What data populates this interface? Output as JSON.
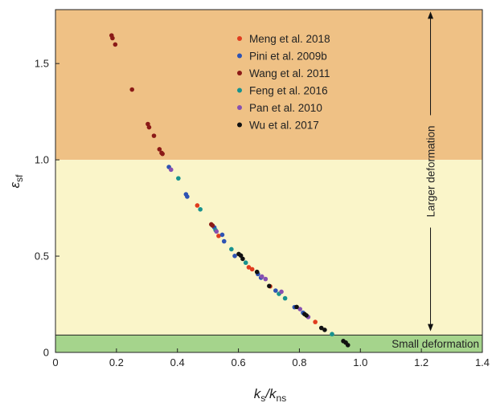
{
  "chart_data": {
    "type": "scatter",
    "title": "",
    "xlabel": {
      "main": "k",
      "sub1": "s",
      "sep": "/k",
      "sub2": "ns"
    },
    "ylabel": {
      "main": "ε",
      "sub": "sf"
    },
    "xlim": [
      0,
      1.4
    ],
    "ylim": [
      0,
      1.78
    ],
    "xticks": [
      "0",
      "0.2",
      "0.4",
      "0.6",
      "0.8",
      "1.0",
      "1.2",
      "1.4"
    ],
    "yticks": [
      "0",
      "0.5",
      "1.0",
      "1.5"
    ],
    "grid": false,
    "legend_position": "top-center",
    "regions": [
      {
        "label": "",
        "y_from": 1.0,
        "y_to": 1.78,
        "color": "#efc185"
      },
      {
        "label": "",
        "y_from": 0.09,
        "y_to": 1.0,
        "color": "#faf5c9"
      },
      {
        "label": "Small deformation",
        "y_from": 0.0,
        "y_to": 0.09,
        "color": "#a5d48c"
      }
    ],
    "annotations": [
      {
        "text": "Larger deformation",
        "x": 1.23,
        "y_from": 0.11,
        "y_to": 1.77
      }
    ],
    "series": [
      {
        "name": "Meng et al. 2018",
        "color": "#e03c1e",
        "x": [
          0.465,
          0.535,
          0.634,
          0.645,
          0.704,
          0.852
        ],
        "y": [
          0.763,
          0.605,
          0.442,
          0.432,
          0.343,
          0.158
        ]
      },
      {
        "name": "Pini et al. 2009b",
        "color": "#2e53b3",
        "x": [
          0.372,
          0.428,
          0.432,
          0.521,
          0.547,
          0.553,
          0.588,
          0.664,
          0.674,
          0.722,
          0.784,
          0.812
        ],
        "y": [
          0.963,
          0.821,
          0.809,
          0.649,
          0.611,
          0.577,
          0.501,
          0.407,
          0.388,
          0.321,
          0.235,
          0.206
        ]
      },
      {
        "name": "Wang et al. 2011",
        "color": "#8b1a17",
        "x": [
          0.184,
          0.187,
          0.196,
          0.251,
          0.303,
          0.307,
          0.323,
          0.341,
          0.348,
          0.351,
          0.511,
          0.515
        ],
        "y": [
          1.646,
          1.632,
          1.599,
          1.365,
          1.186,
          1.169,
          1.125,
          1.055,
          1.036,
          1.031,
          0.665,
          0.659
        ]
      },
      {
        "name": "Feng et al. 2016",
        "color": "#18928e",
        "x": [
          0.403,
          0.475,
          0.525,
          0.577,
          0.624,
          0.733,
          0.753,
          0.907
        ],
        "y": [
          0.904,
          0.743,
          0.635,
          0.536,
          0.466,
          0.304,
          0.281,
          0.095
        ]
      },
      {
        "name": "Pan et al. 2010",
        "color": "#8650b0",
        "x": [
          0.379,
          0.528,
          0.677,
          0.689,
          0.741,
          0.802,
          0.829
        ],
        "y": [
          0.949,
          0.628,
          0.394,
          0.381,
          0.315,
          0.225,
          0.184
        ]
      },
      {
        "name": "Wu et al. 2017",
        "color": "#111111",
        "x": [
          0.601,
          0.608,
          0.614,
          0.661,
          0.701,
          0.791,
          0.817,
          0.823,
          0.872,
          0.883,
          0.944,
          0.952,
          0.959
        ],
        "y": [
          0.511,
          0.503,
          0.486,
          0.418,
          0.345,
          0.236,
          0.199,
          0.192,
          0.127,
          0.117,
          0.059,
          0.051,
          0.038
        ]
      }
    ]
  }
}
